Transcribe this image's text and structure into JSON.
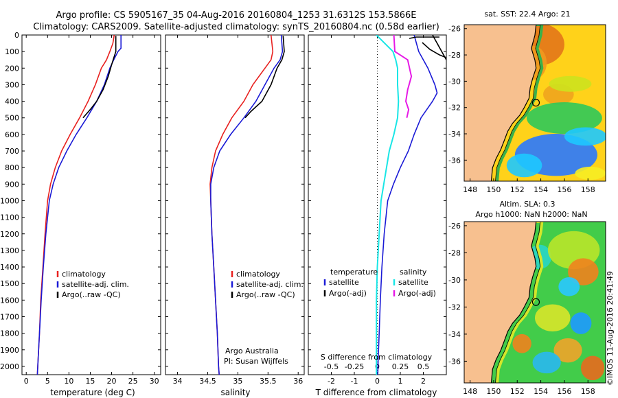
{
  "header": {
    "line1": "Argo profile: CS 5905167_35 04-Aug-2016 20160804_1253 31.6312S 153.5866E",
    "line2": "Climatology: CARS2009. Satellite-adjusted climatology: synTS_20160804.nc (0.58d earlier)"
  },
  "colors": {
    "climatology": "#e8211f",
    "satellite": "#1a1ad6",
    "argo": "#000000",
    "satellite_salinity": "#19e6e6",
    "argo_adj_salinity": "#e619e6",
    "land": "#f7c08f"
  },
  "depth_axis": {
    "ticks": [
      0,
      100,
      200,
      300,
      400,
      500,
      600,
      700,
      800,
      900,
      1000,
      1100,
      1200,
      1300,
      1400,
      1500,
      1600,
      1700,
      1800,
      1900,
      2000
    ],
    "range": [
      0,
      2050
    ]
  },
  "panels": {
    "temperature": {
      "xlabel": "temperature (deg C)",
      "xticks": [
        0,
        5,
        10,
        15,
        20,
        25,
        30
      ],
      "xlim": [
        -1,
        31.5
      ],
      "legend": [
        "climatology",
        "satellite-adj. clim.",
        "Argo(..raw -QC)"
      ]
    },
    "salinity": {
      "xlabel": "salinity",
      "xticks": [
        34,
        34.5,
        35,
        35.5,
        36
      ],
      "xlim": [
        33.8,
        36.1
      ],
      "legend": [
        "climatology",
        "satellite-adj. clim.",
        "Argo(..raw -QC)"
      ],
      "note1": "Argo Australia",
      "note2": "PI: Susan Wijffels"
    },
    "difference": {
      "xlabel": "T difference from climatology",
      "xlabel_top": "S difference from climatology",
      "xticks": [
        -2,
        -1,
        0,
        1,
        2
      ],
      "xlim": [
        -3,
        3
      ],
      "sticks": [
        "-0.5",
        "-0.25",
        "0",
        "0.25",
        "0.5"
      ],
      "legend_temp_title": "temperature",
      "legend_temp": [
        "satellite",
        "Argo(-adj)"
      ],
      "legend_sal_title": "salinity",
      "legend_sal": [
        "satellite",
        "Argo(-adj)"
      ]
    }
  },
  "maps": {
    "sst_title": "sat. SST: 22.4  Argo: 21",
    "sla_title1": "Altim. SLA: 0.3",
    "sla_title2": "Argo h1000: NaN h2000: NaN",
    "lon_ticks": [
      148,
      150,
      152,
      154,
      156,
      158
    ],
    "lat_ticks": [
      -26,
      -28,
      -30,
      -32,
      -34,
      -36
    ],
    "lon_range": [
      147.5,
      159.5
    ],
    "lat_range": [
      -25.7,
      -37.6
    ],
    "float_position": {
      "lon": 153.5866,
      "lat": -31.6312
    }
  },
  "credit": "©IMOS 11-Aug-2016 20:41:49",
  "chart_data": [
    {
      "type": "line",
      "title": "",
      "xlabel": "temperature (deg C)",
      "ylabel": "",
      "xlim": [
        -1,
        31.5
      ],
      "ylim": [
        2050,
        0
      ],
      "series": [
        {
          "name": "climatology",
          "points": [
            [
              20.6,
              0
            ],
            [
              20.3,
              50
            ],
            [
              19.6,
              100
            ],
            [
              18.8,
              150
            ],
            [
              17.6,
              200
            ],
            [
              16.2,
              300
            ],
            [
              14.5,
              400
            ],
            [
              12.5,
              500
            ],
            [
              10.3,
              600
            ],
            [
              8.3,
              700
            ],
            [
              6.8,
              800
            ],
            [
              5.7,
              900
            ],
            [
              5.0,
              1000
            ],
            [
              4.4,
              1200
            ],
            [
              3.9,
              1400
            ],
            [
              3.4,
              1600
            ],
            [
              3.1,
              1800
            ],
            [
              2.8,
              1950
            ],
            [
              2.6,
              2050
            ]
          ]
        },
        {
          "name": "satellite-adj. clim.",
          "points": [
            [
              22.2,
              0
            ],
            [
              22.2,
              80
            ],
            [
              21.5,
              100
            ],
            [
              20.5,
              150
            ],
            [
              19.6,
              200
            ],
            [
              18.3,
              300
            ],
            [
              16.5,
              400
            ],
            [
              14.2,
              500
            ],
            [
              11.7,
              600
            ],
            [
              9.5,
              700
            ],
            [
              7.6,
              800
            ],
            [
              6.3,
              900
            ],
            [
              5.4,
              1000
            ],
            [
              4.6,
              1200
            ],
            [
              4.0,
              1400
            ],
            [
              3.5,
              1600
            ],
            [
              3.1,
              1800
            ],
            [
              2.8,
              1950
            ],
            [
              2.6,
              2050
            ]
          ]
        },
        {
          "name": "Argo(..raw -QC)",
          "points": [
            [
              21.0,
              5
            ],
            [
              21.0,
              100
            ],
            [
              20.6,
              130
            ],
            [
              20.0,
              180
            ],
            [
              19.2,
              250
            ],
            [
              18.0,
              330
            ],
            [
              16.5,
              400
            ],
            [
              15.0,
              450
            ],
            [
              13.3,
              500
            ]
          ]
        }
      ]
    },
    {
      "type": "line",
      "title": "",
      "xlabel": "salinity",
      "ylabel": "",
      "xlim": [
        33.8,
        36.1
      ],
      "ylim": [
        2050,
        0
      ],
      "series": [
        {
          "name": "climatology",
          "points": [
            [
              35.55,
              0
            ],
            [
              35.58,
              100
            ],
            [
              35.55,
              150
            ],
            [
              35.45,
              200
            ],
            [
              35.25,
              300
            ],
            [
              35.1,
              400
            ],
            [
              34.9,
              500
            ],
            [
              34.75,
              600
            ],
            [
              34.63,
              700
            ],
            [
              34.57,
              800
            ],
            [
              34.54,
              900
            ],
            [
              34.55,
              1000
            ],
            [
              34.57,
              1200
            ],
            [
              34.6,
              1400
            ],
            [
              34.63,
              1600
            ],
            [
              34.66,
              1800
            ],
            [
              34.68,
              2000
            ],
            [
              34.69,
              2050
            ]
          ]
        },
        {
          "name": "satellite-adj. clim.",
          "points": [
            [
              35.72,
              0
            ],
            [
              35.74,
              100
            ],
            [
              35.7,
              150
            ],
            [
              35.6,
              200
            ],
            [
              35.45,
              300
            ],
            [
              35.3,
              400
            ],
            [
              35.1,
              500
            ],
            [
              34.88,
              600
            ],
            [
              34.7,
              700
            ],
            [
              34.6,
              800
            ],
            [
              34.55,
              900
            ],
            [
              34.55,
              1000
            ],
            [
              34.57,
              1200
            ],
            [
              34.6,
              1400
            ],
            [
              34.63,
              1600
            ],
            [
              34.66,
              1800
            ],
            [
              34.68,
              2000
            ],
            [
              34.69,
              2050
            ]
          ]
        },
        {
          "name": "Argo(..raw -QC)",
          "points": [
            [
              35.75,
              5
            ],
            [
              35.77,
              100
            ],
            [
              35.73,
              150
            ],
            [
              35.65,
              200
            ],
            [
              35.55,
              300
            ],
            [
              35.4,
              400
            ],
            [
              35.22,
              460
            ],
            [
              35.12,
              500
            ]
          ]
        }
      ]
    },
    {
      "type": "line",
      "title": "",
      "xlabel": "T difference from climatology",
      "ylabel": "",
      "xlim": [
        -3,
        3
      ],
      "ylim": [
        2050,
        0
      ],
      "series": [
        {
          "name": "temperature satellite",
          "points": [
            [
              1.6,
              0
            ],
            [
              1.8,
              100
            ],
            [
              2.2,
              200
            ],
            [
              2.5,
              300
            ],
            [
              2.6,
              350
            ],
            [
              2.4,
              400
            ],
            [
              1.9,
              500
            ],
            [
              1.6,
              600
            ],
            [
              1.35,
              700
            ],
            [
              1.0,
              800
            ],
            [
              0.7,
              900
            ],
            [
              0.45,
              1000
            ],
            [
              0.3,
              1200
            ],
            [
              0.2,
              1400
            ],
            [
              0.13,
              1600
            ],
            [
              0.08,
              1800
            ],
            [
              0.04,
              1950
            ],
            [
              0.02,
              2050
            ]
          ]
        },
        {
          "name": "temperature Argo(-adj)",
          "points": [
            [
              2.4,
              0
            ],
            [
              3.0,
              150
            ]
          ]
        },
        {
          "name": "salinity satellite",
          "points": [
            [
              -0.01,
              0
            ],
            [
              0.08,
              50
            ],
            [
              0.17,
              100
            ],
            [
              0.2,
              150
            ],
            [
              0.22,
              200
            ],
            [
              0.22,
              300
            ],
            [
              0.23,
              400
            ],
            [
              0.22,
              500
            ],
            [
              0.18,
              600
            ],
            [
              0.13,
              700
            ],
            [
              0.1,
              800
            ],
            [
              0.07,
              900
            ],
            [
              0.04,
              1000
            ],
            [
              0.02,
              1200
            ],
            [
              0.0,
              1400
            ],
            [
              -0.01,
              1600
            ],
            [
              -0.01,
              1800
            ],
            [
              -0.01,
              2050
            ]
          ]
        },
        {
          "name": "salinity Argo(-adj)",
          "points": [
            [
              0.18,
              0
            ],
            [
              0.19,
              100
            ],
            [
              0.33,
              150
            ],
            [
              0.35,
              200
            ],
            [
              0.37,
              250
            ],
            [
              0.33,
              330
            ],
            [
              0.31,
              400
            ],
            [
              0.34,
              450
            ],
            [
              0.32,
              500
            ]
          ]
        }
      ]
    }
  ]
}
